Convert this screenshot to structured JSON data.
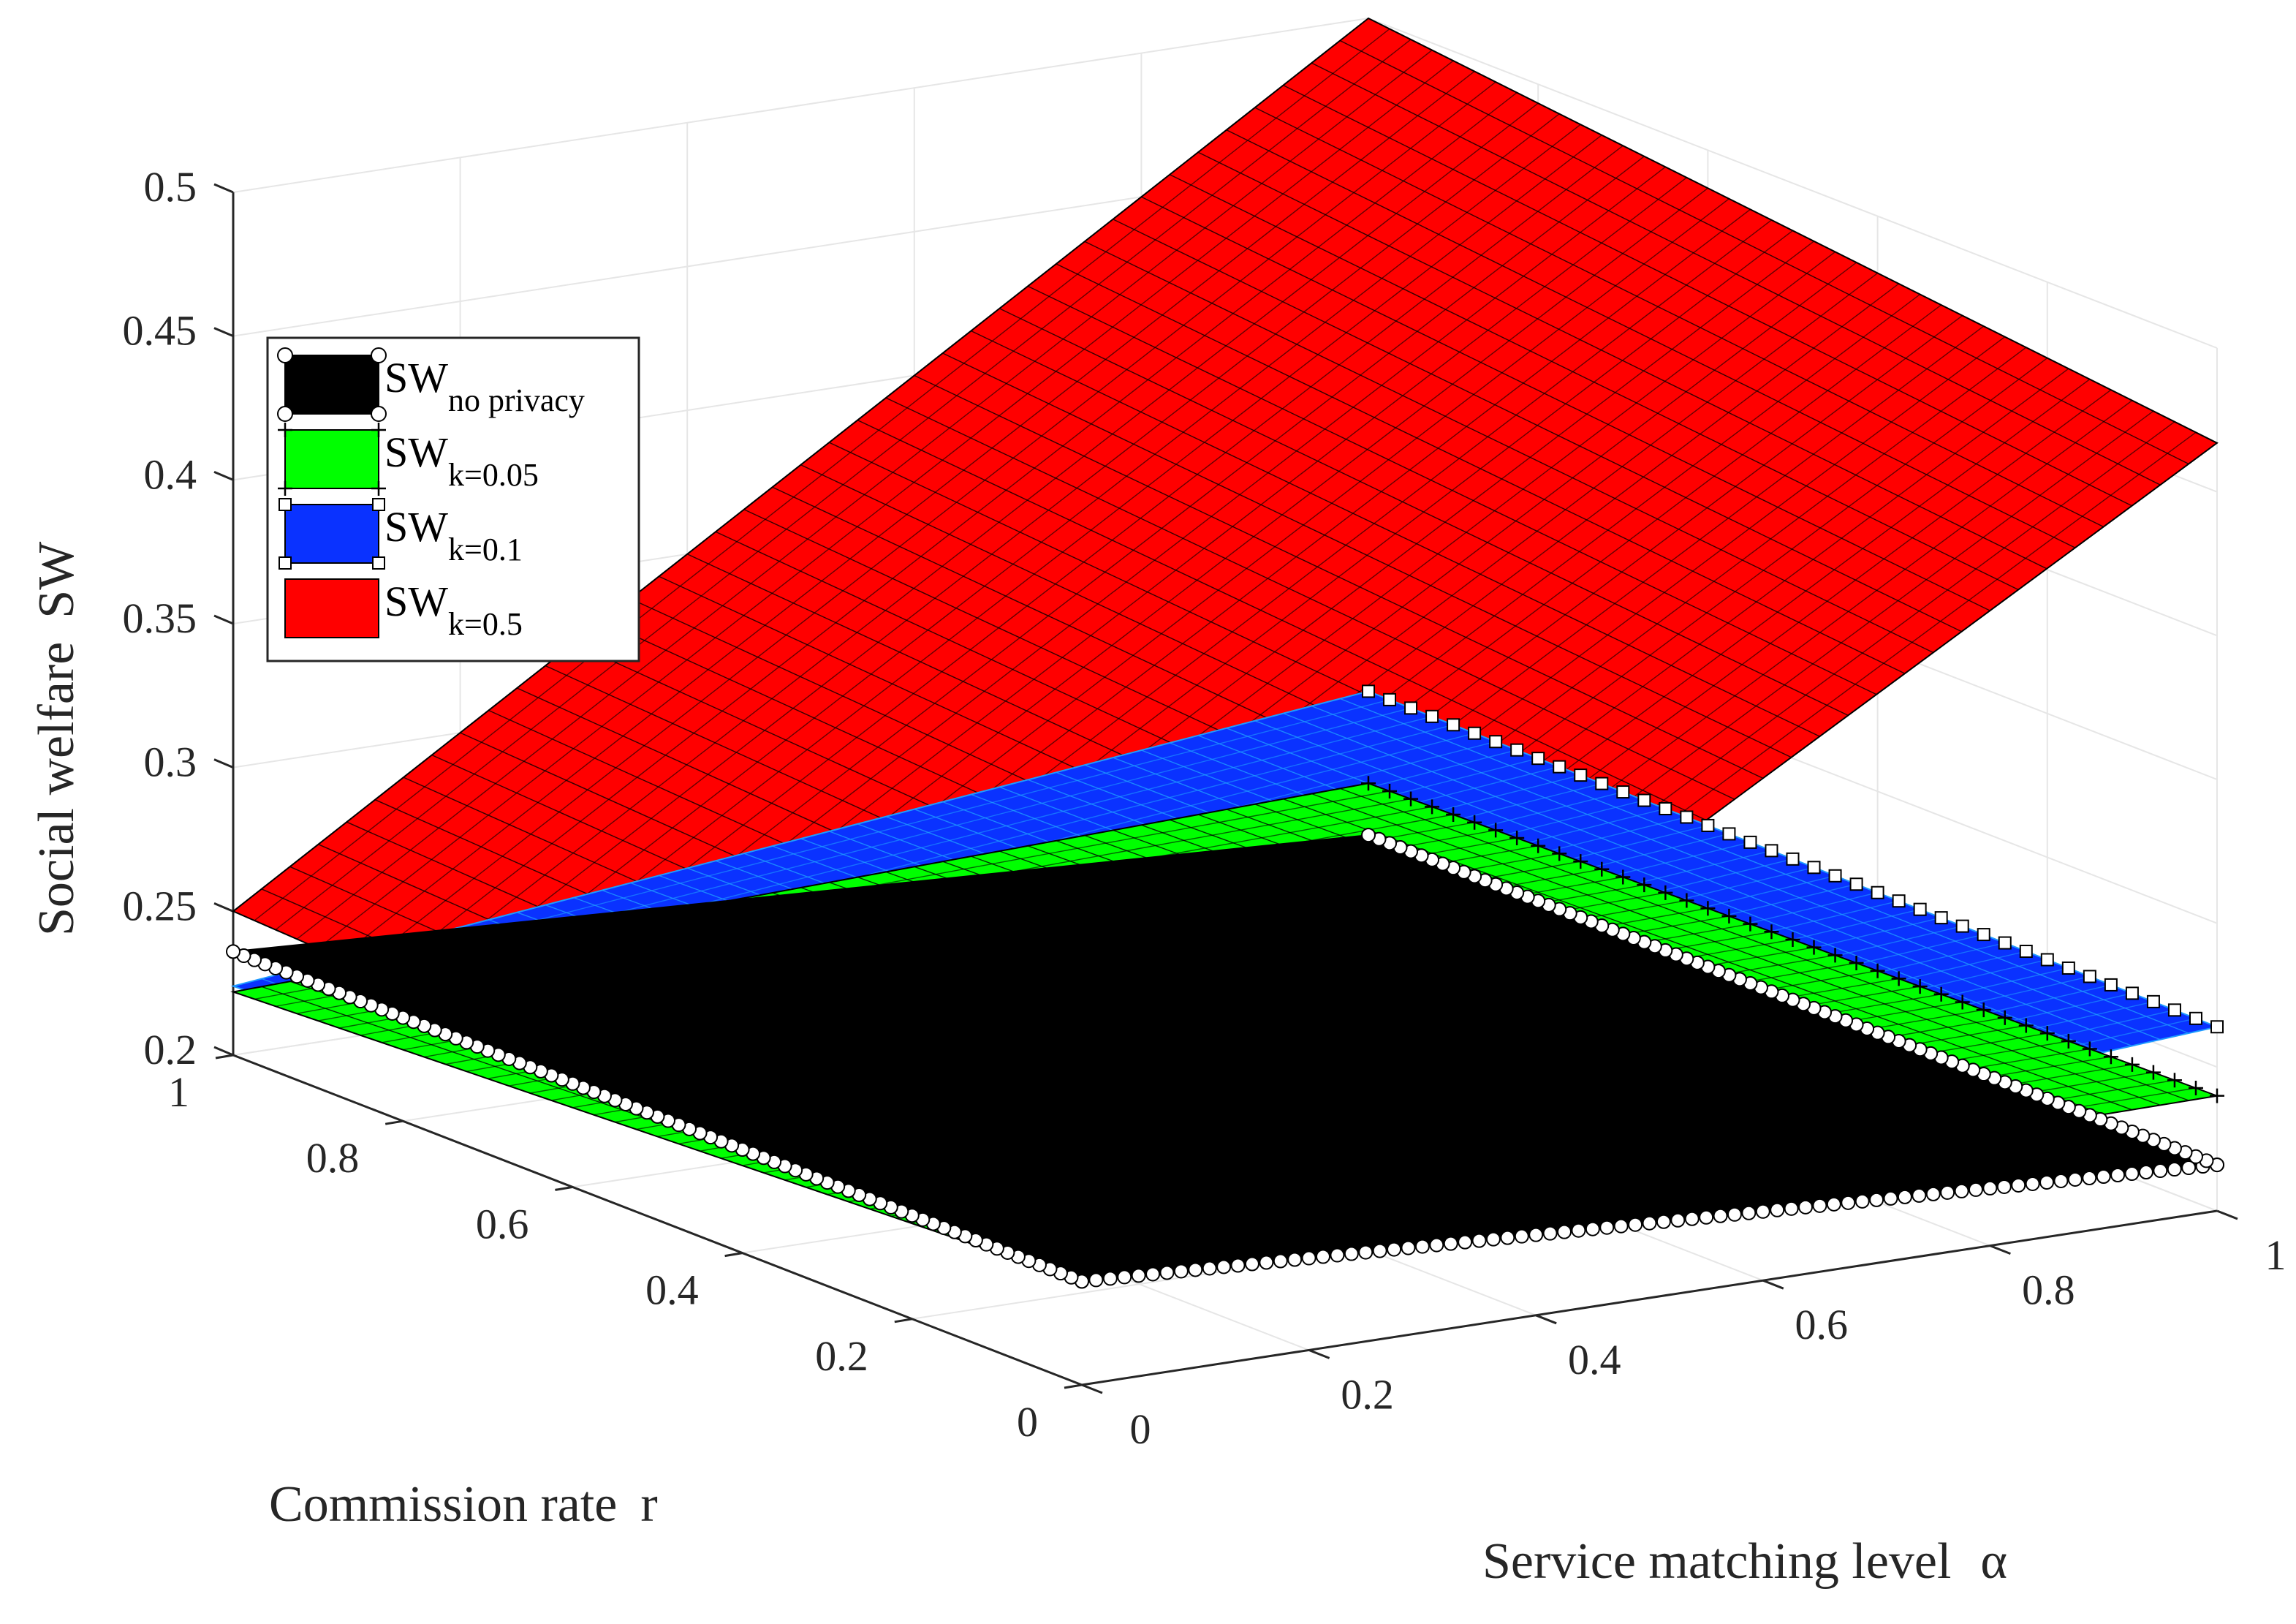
{
  "chart_data": {
    "type": "surface",
    "title": "",
    "x_axis": {
      "label_text": "Service matching level",
      "label_symbol": "α",
      "range": [
        0,
        1
      ],
      "ticks": [
        "0",
        "0.2",
        "0.4",
        "0.6",
        "0.8",
        "1"
      ]
    },
    "y_axis": {
      "label_text": "Commission rate",
      "label_symbol": "r",
      "range": [
        0,
        1
      ],
      "ticks": [
        "0",
        "0.2",
        "0.4",
        "0.6",
        "0.8",
        "1"
      ]
    },
    "z_axis": {
      "label_text": "Social welfare",
      "label_symbol": "SW",
      "range": [
        0.2,
        0.5
      ],
      "ticks": [
        "0.2",
        "0.25",
        "0.3",
        "0.35",
        "0.4",
        "0.45",
        "0.5"
      ]
    },
    "grid": true,
    "legend_position": "top-left",
    "series": [
      {
        "base": "SW",
        "subscript": "no privacy",
        "color": "#000000",
        "edge_color": "#000000",
        "marker": "circle",
        "surface": {
          "x": [
            0,
            1
          ],
          "y": [
            0,
            1
          ],
          "z": [
            [
              0.236,
              0.216
            ],
            [
              0.236,
              0.216
            ]
          ]
        }
      },
      {
        "base": "SW",
        "subscript": "k=0.05",
        "color": "#00ff00",
        "edge_color": "#000000",
        "marker": "plus",
        "surface": {
          "x": [
            0,
            1
          ],
          "y": [
            0,
            1
          ],
          "z": [
            [
              0.236,
              0.24
            ],
            [
              0.222,
              0.234
            ]
          ]
        }
      },
      {
        "base": "SW",
        "subscript": "k=0.1",
        "color": "#0a32ff",
        "edge_color": "#1e9bff",
        "marker": "square",
        "surface": {
          "x": [
            0,
            1
          ],
          "y": [
            0,
            1
          ],
          "z": [
            [
              0.236,
              0.264
            ],
            [
              0.224,
              0.266
            ]
          ]
        }
      },
      {
        "base": "SW",
        "subscript": "k=0.5",
        "color": "#ff0000",
        "edge_color": "#000000",
        "marker": "none",
        "surface": {
          "x": [
            0,
            1
          ],
          "y": [
            0,
            1
          ],
          "z": [
            [
              0.236,
              0.467
            ],
            [
              0.25,
              0.5
            ]
          ]
        }
      }
    ]
  }
}
